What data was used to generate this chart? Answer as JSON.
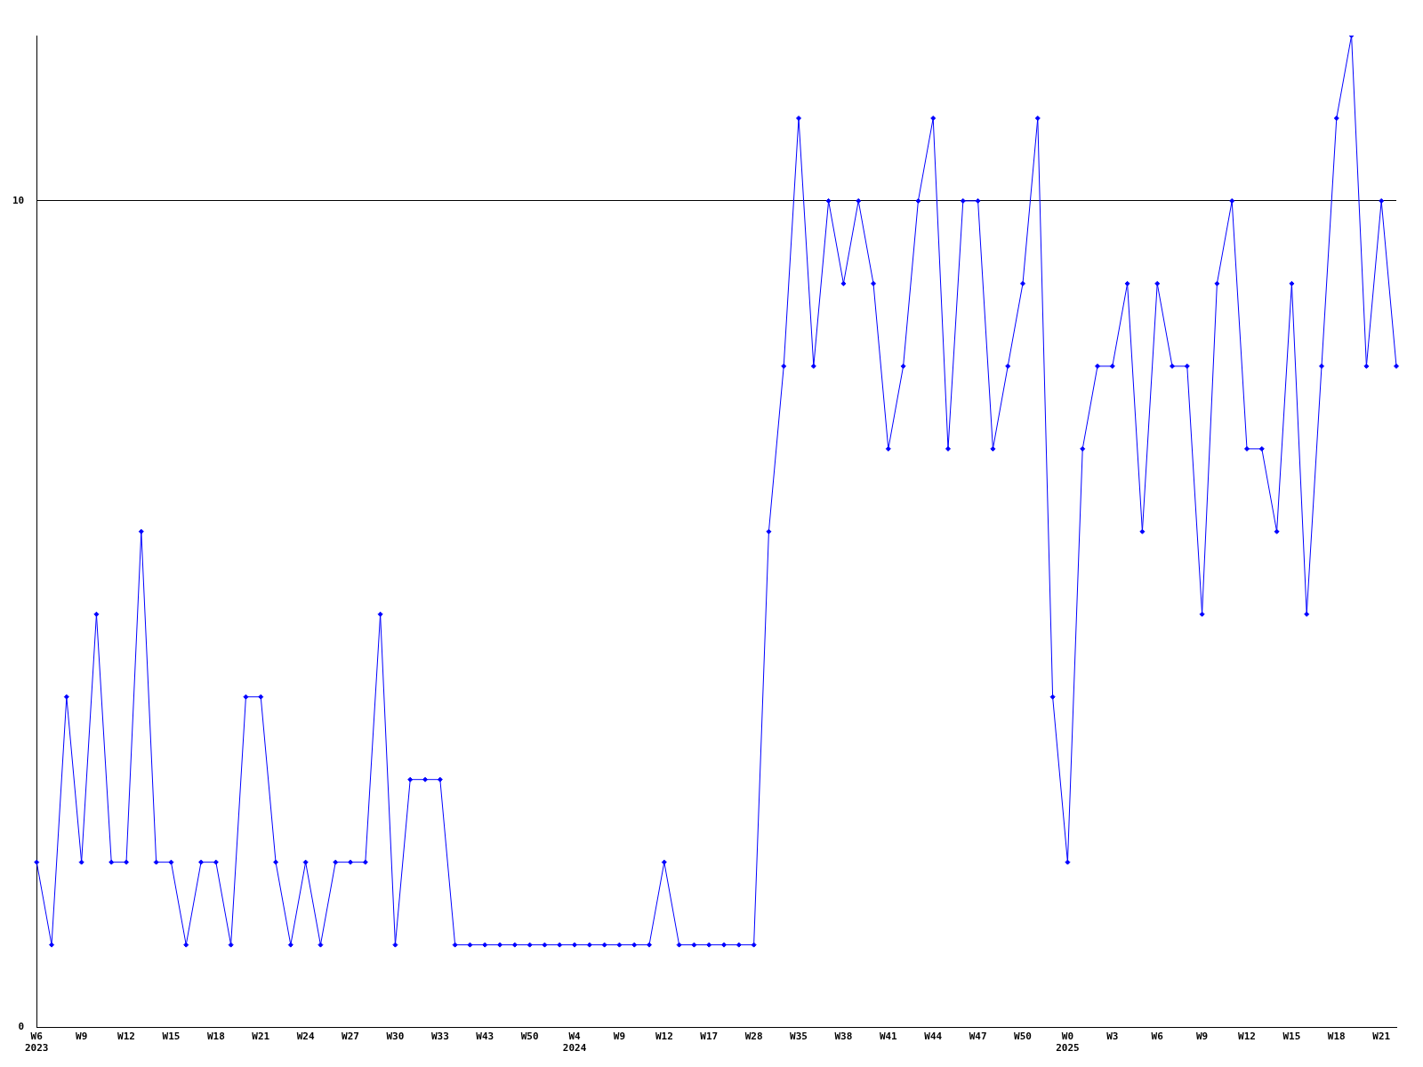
{
  "chart_data": {
    "type": "line",
    "categories": [
      "W6\n2023",
      null,
      null,
      "W9",
      null,
      null,
      "W12",
      null,
      null,
      "W15",
      null,
      null,
      "W18",
      null,
      null,
      "W21",
      null,
      null,
      "W24",
      null,
      null,
      "W27",
      null,
      null,
      "W30",
      null,
      null,
      "W33",
      null,
      null,
      "W43",
      null,
      null,
      "W50",
      null,
      null,
      "W4\n2024",
      null,
      null,
      "W9",
      null,
      null,
      "W12",
      null,
      null,
      "W17",
      null,
      null,
      "W28",
      null,
      null,
      "W35",
      null,
      null,
      "W38",
      null,
      null,
      "W41",
      null,
      null,
      "W44",
      null,
      null,
      "W47",
      null,
      null,
      "W50",
      null,
      null,
      "W0\n2025",
      null,
      null,
      "W3",
      null,
      null,
      "W6",
      null,
      null,
      "W9",
      null,
      null,
      "W12",
      null,
      null,
      "W15",
      null,
      null,
      "W18",
      null,
      null,
      "W21",
      null
    ],
    "series": [
      {
        "color": "#0000ff",
        "values": [
          2,
          1,
          4,
          2,
          5,
          2,
          2,
          6,
          2,
          2,
          1,
          2,
          2,
          1,
          4,
          4,
          2,
          1,
          2,
          1,
          2,
          2,
          2,
          5,
          1,
          3,
          3,
          3,
          1,
          1,
          1,
          1,
          1,
          1,
          1,
          1,
          1,
          1,
          1,
          1,
          1,
          1,
          2,
          1,
          1,
          1,
          1,
          1,
          1,
          6,
          8,
          11,
          8,
          10,
          9,
          10,
          9,
          7,
          8,
          10,
          11,
          7,
          10,
          10,
          7,
          8,
          9,
          11,
          4,
          2,
          7,
          8,
          8,
          9,
          6,
          9,
          8,
          8,
          5,
          9,
          10,
          7,
          7,
          6,
          9,
          5,
          8,
          11,
          12,
          8,
          10,
          8
        ]
      }
    ],
    "ylim": [
      0,
      12
    ],
    "yticks": [
      0,
      10
    ],
    "grid": "y",
    "legend": false,
    "marker": "diamond",
    "line_style": "solid"
  }
}
